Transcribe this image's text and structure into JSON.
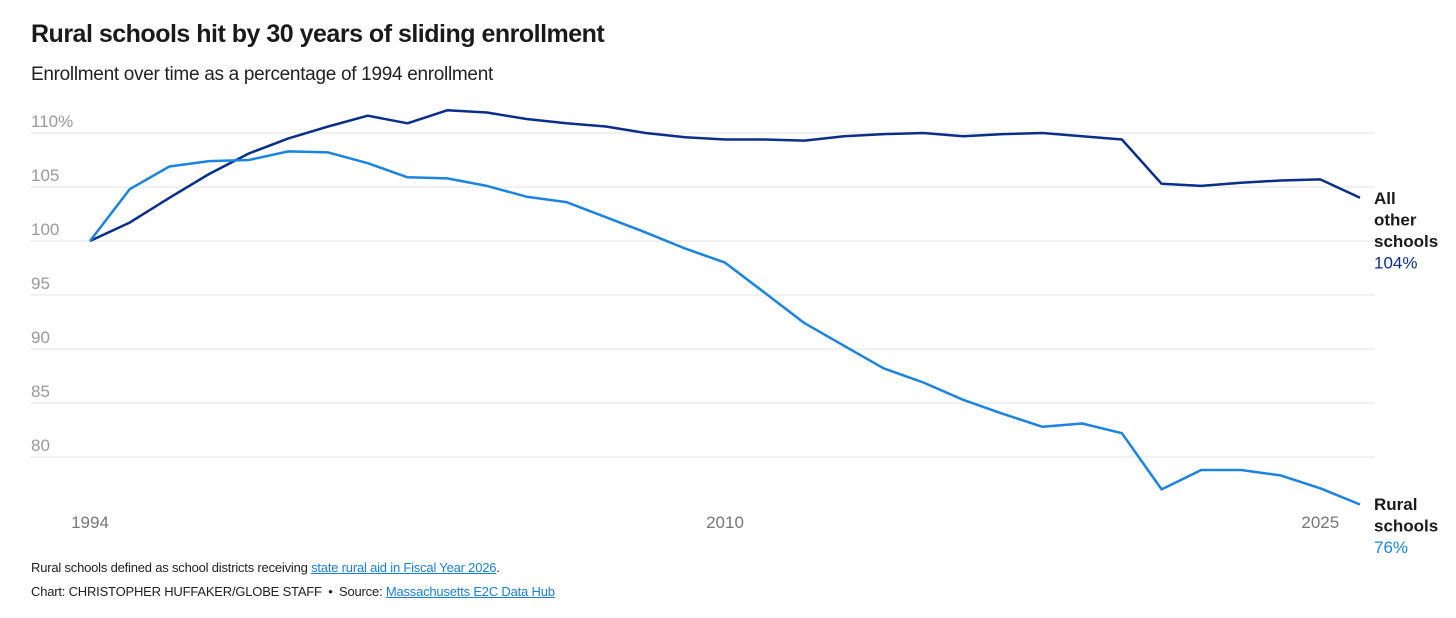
{
  "chart_data": {
    "type": "line",
    "title": "Rural schools hit by 30 years of sliding enrollment",
    "subtitle": "Enrollment over time as a percentage of 1994 enrollment",
    "xlabel": "",
    "ylabel": "",
    "xlim": [
      1994,
      2026
    ],
    "ylim": [
      75,
      112
    ],
    "yticks": [
      80,
      85,
      90,
      95,
      100,
      105,
      110
    ],
    "ytick_labels": [
      "80",
      "85",
      "90",
      "95",
      "100",
      "105",
      "110%"
    ],
    "xticks": [
      1994,
      2010,
      2025
    ],
    "xtick_labels": [
      "1994",
      "2010",
      "2025"
    ],
    "grid": true,
    "x": [
      1994,
      1995,
      1996,
      1997,
      1998,
      1999,
      2000,
      2001,
      2002,
      2003,
      2004,
      2005,
      2006,
      2007,
      2008,
      2009,
      2010,
      2011,
      2012,
      2013,
      2014,
      2015,
      2016,
      2017,
      2018,
      2019,
      2020,
      2021,
      2022,
      2023,
      2024,
      2025,
      2026
    ],
    "series": [
      {
        "name": "All other schools",
        "label_lines": [
          "All",
          "other",
          "schools"
        ],
        "end_label": "104%",
        "color": "#0a2f8a",
        "values": [
          100,
          101.7,
          104.0,
          106.2,
          108.1,
          109.5,
          110.6,
          111.6,
          110.9,
          112.1,
          111.9,
          111.3,
          110.9,
          110.6,
          110.0,
          109.6,
          109.4,
          109.4,
          109.3,
          109.7,
          109.9,
          110.0,
          109.7,
          109.9,
          110.0,
          109.7,
          109.4,
          105.3,
          105.1,
          105.4,
          105.6,
          105.7,
          104.0
        ]
      },
      {
        "name": "Rural schools",
        "label_lines": [
          "Rural",
          "schools"
        ],
        "end_label": "76%",
        "color": "#1a84e0",
        "values": [
          100,
          104.8,
          106.9,
          107.4,
          107.5,
          108.3,
          108.2,
          107.2,
          105.9,
          105.8,
          105.1,
          104.1,
          103.6,
          102.2,
          100.8,
          99.3,
          98.0,
          95.2,
          92.4,
          90.3,
          88.2,
          86.9,
          85.3,
          84.0,
          82.8,
          83.1,
          82.2,
          77.0,
          78.8,
          78.8,
          78.3,
          77.1,
          75.6
        ]
      }
    ]
  },
  "footer": {
    "note_prefix": "Rural schools defined as school districts receiving ",
    "note_link": "state rural aid in Fiscal Year 2026",
    "note_suffix": ".",
    "credit": "Chart: CHRISTOPHER HUFFAKER/GLOBE STAFF",
    "separator": "•",
    "source_prefix": "Source: ",
    "source_link": "Massachusetts E2C Data Hub"
  }
}
